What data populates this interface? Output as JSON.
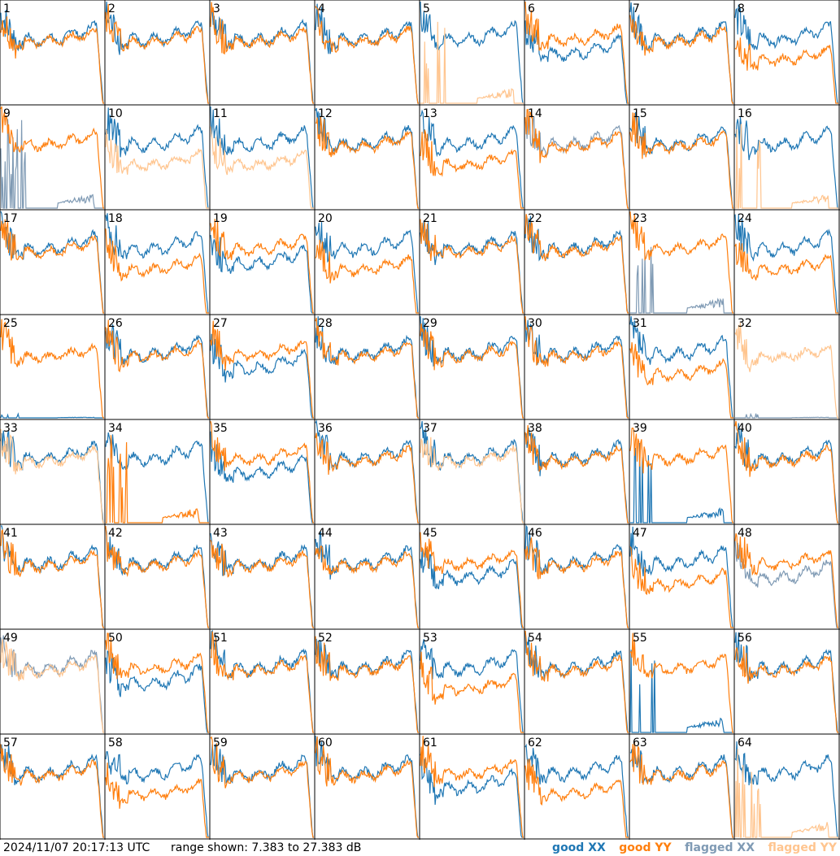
{
  "footer": {
    "timestamp": "2024/11/07 20:17:13 UTC",
    "range_text": "range shown: 7.383 to 27.383 dB"
  },
  "legend": [
    {
      "label": "good XX",
      "color": "#1f77b4"
    },
    {
      "label": "good YY",
      "color": "#ff7f0e"
    },
    {
      "label": "flagged XX",
      "color": "#7f9ab4"
    },
    {
      "label": "flagged YY",
      "color": "#ffc58f"
    }
  ],
  "chart_data": {
    "type": "line",
    "description_units": "dB",
    "ylim": [
      7.383,
      27.383
    ],
    "grid_layout": "8x8",
    "panels": [
      {
        "id": "1",
        "xx": "good",
        "yy": "good",
        "style": "std"
      },
      {
        "id": "2",
        "xx": "good",
        "yy": "good",
        "style": "std"
      },
      {
        "id": "3",
        "xx": "good",
        "yy": "good",
        "style": "std"
      },
      {
        "id": "4",
        "xx": "good",
        "yy": "good",
        "style": "std"
      },
      {
        "id": "5",
        "xx": "good",
        "yy": "flagged",
        "style": "deadYY"
      },
      {
        "id": "6",
        "xx": "good",
        "yy": "good",
        "style": "lowXX"
      },
      {
        "id": "7",
        "xx": "good",
        "yy": "good",
        "style": "std"
      },
      {
        "id": "8",
        "xx": "good",
        "yy": "good",
        "style": "lowYY"
      },
      {
        "id": "9",
        "xx": "flagged",
        "yy": "good",
        "style": "deadXX"
      },
      {
        "id": "10",
        "xx": "good",
        "yy": "flagged",
        "style": "lowYY"
      },
      {
        "id": "11",
        "xx": "good",
        "yy": "flagged",
        "style": "lowYY"
      },
      {
        "id": "12",
        "xx": "good",
        "yy": "good",
        "style": "std"
      },
      {
        "id": "13",
        "xx": "good",
        "yy": "good",
        "style": "lowYY"
      },
      {
        "id": "14",
        "xx": "flagged",
        "yy": "good",
        "style": "std"
      },
      {
        "id": "15",
        "xx": "good",
        "yy": "good",
        "style": "std"
      },
      {
        "id": "16",
        "xx": "good",
        "yy": "flagged",
        "style": "deadYY"
      },
      {
        "id": "17",
        "xx": "good",
        "yy": "good",
        "style": "std"
      },
      {
        "id": "18",
        "xx": "good",
        "yy": "good",
        "style": "lowYY"
      },
      {
        "id": "19",
        "xx": "good",
        "yy": "good",
        "style": "lowXX"
      },
      {
        "id": "20",
        "xx": "good",
        "yy": "good",
        "style": "lowYY"
      },
      {
        "id": "21",
        "xx": "good",
        "yy": "good",
        "style": "std"
      },
      {
        "id": "22",
        "xx": "good",
        "yy": "good",
        "style": "std"
      },
      {
        "id": "23",
        "xx": "flagged",
        "yy": "good",
        "style": "deadXX"
      },
      {
        "id": "24",
        "xx": "good",
        "yy": "good",
        "style": "lowYY"
      },
      {
        "id": "25",
        "xx": "good",
        "yy": "good",
        "style": "yyOnly"
      },
      {
        "id": "26",
        "xx": "good",
        "yy": "good",
        "style": "std"
      },
      {
        "id": "27",
        "xx": "good",
        "yy": "good",
        "style": "lowXX"
      },
      {
        "id": "28",
        "xx": "good",
        "yy": "good",
        "style": "std"
      },
      {
        "id": "29",
        "xx": "good",
        "yy": "good",
        "style": "std"
      },
      {
        "id": "30",
        "xx": "good",
        "yy": "good",
        "style": "std"
      },
      {
        "id": "31",
        "xx": "good",
        "yy": "good",
        "style": "lowYY"
      },
      {
        "id": "32",
        "xx": "flagged",
        "yy": "flagged",
        "style": "yyOnly"
      },
      {
        "id": "33",
        "xx": "good",
        "yy": "flagged",
        "style": "std"
      },
      {
        "id": "34",
        "xx": "good",
        "yy": "good",
        "style": "deadYY"
      },
      {
        "id": "35",
        "xx": "good",
        "yy": "good",
        "style": "lowXX"
      },
      {
        "id": "36",
        "xx": "good",
        "yy": "good",
        "style": "std"
      },
      {
        "id": "37",
        "xx": "good",
        "yy": "flagged",
        "style": "std"
      },
      {
        "id": "38",
        "xx": "good",
        "yy": "good",
        "style": "std"
      },
      {
        "id": "39",
        "xx": "good",
        "yy": "good",
        "style": "deadXX"
      },
      {
        "id": "40",
        "xx": "good",
        "yy": "good",
        "style": "std"
      },
      {
        "id": "41",
        "xx": "good",
        "yy": "good",
        "style": "std"
      },
      {
        "id": "42",
        "xx": "good",
        "yy": "good",
        "style": "std"
      },
      {
        "id": "43",
        "xx": "good",
        "yy": "good",
        "style": "std"
      },
      {
        "id": "44",
        "xx": "good",
        "yy": "good",
        "style": "std"
      },
      {
        "id": "45",
        "xx": "good",
        "yy": "good",
        "style": "lowXX"
      },
      {
        "id": "46",
        "xx": "good",
        "yy": "good",
        "style": "std"
      },
      {
        "id": "47",
        "xx": "good",
        "yy": "good",
        "style": "lowYY"
      },
      {
        "id": "48",
        "xx": "flagged",
        "yy": "good",
        "style": "lowXX"
      },
      {
        "id": "49",
        "xx": "flagged",
        "yy": "flagged",
        "style": "std"
      },
      {
        "id": "50",
        "xx": "good",
        "yy": "good",
        "style": "lowXX"
      },
      {
        "id": "51",
        "xx": "good",
        "yy": "good",
        "style": "std"
      },
      {
        "id": "52",
        "xx": "good",
        "yy": "good",
        "style": "std"
      },
      {
        "id": "53",
        "xx": "good",
        "yy": "good",
        "style": "lowYY"
      },
      {
        "id": "54",
        "xx": "good",
        "yy": "good",
        "style": "std"
      },
      {
        "id": "55",
        "xx": "good",
        "yy": "good",
        "style": "deadXX"
      },
      {
        "id": "56",
        "xx": "good",
        "yy": "good",
        "style": "std"
      },
      {
        "id": "57",
        "xx": "good",
        "yy": "good",
        "style": "std"
      },
      {
        "id": "58",
        "xx": "good",
        "yy": "good",
        "style": "lowYY"
      },
      {
        "id": "59",
        "xx": "good",
        "yy": "good",
        "style": "std"
      },
      {
        "id": "60",
        "xx": "good",
        "yy": "good",
        "style": "std"
      },
      {
        "id": "61",
        "xx": "good",
        "yy": "good",
        "style": "lowXX"
      },
      {
        "id": "62",
        "xx": "good",
        "yy": "good",
        "style": "lowYY"
      },
      {
        "id": "63",
        "xx": "good",
        "yy": "good",
        "style": "std"
      },
      {
        "id": "64",
        "xx": "good",
        "yy": "flagged",
        "style": "deadYY"
      }
    ]
  }
}
